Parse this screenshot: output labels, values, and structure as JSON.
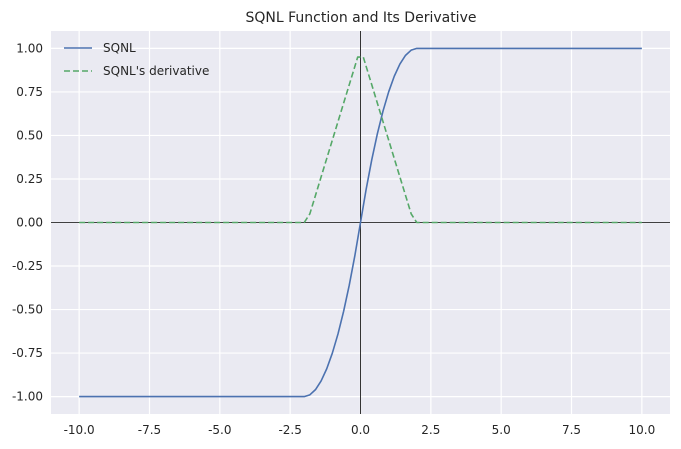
{
  "chart_data": {
    "type": "line",
    "title": "SQNL Function and Its Derivative",
    "xlabel": "",
    "ylabel": "",
    "xlim": [
      -11.0,
      11.0
    ],
    "ylim": [
      -1.1,
      1.1
    ],
    "x_ticks": [
      -10.0,
      -7.5,
      -5.0,
      -2.5,
      0.0,
      2.5,
      5.0,
      7.5,
      10.0
    ],
    "x_tick_labels": [
      "-10.0",
      "-7.5",
      "-5.0",
      "-2.5",
      "0.0",
      "2.5",
      "5.0",
      "7.5",
      "10.0"
    ],
    "y_ticks": [
      1.0,
      0.75,
      0.5,
      0.25,
      0.0,
      -0.25,
      -0.5,
      -0.75,
      -1.0
    ],
    "y_tick_labels": [
      "1.00",
      "0.75",
      "0.50",
      "0.25",
      "0.00",
      "-0.25",
      "-0.50",
      "-0.75",
      "-1.00"
    ],
    "grid": true,
    "axis_lines_at_zero": true,
    "legend": {
      "placement": "top-left"
    },
    "series": [
      {
        "name": "SQNL",
        "color": "#4c72b0",
        "style": "solid",
        "x": [
          -10.0,
          -2.0,
          -1.8,
          -1.6,
          -1.4,
          -1.2,
          -1.0,
          -0.8,
          -0.6,
          -0.4,
          -0.2,
          0.0,
          0.2,
          0.4,
          0.6,
          0.8,
          1.0,
          1.2,
          1.4,
          1.6,
          1.8,
          2.0,
          10.0
        ],
        "y": [
          -1.0,
          -1.0,
          -0.99,
          -0.96,
          -0.91,
          -0.84,
          -0.75,
          -0.64,
          -0.51,
          -0.36,
          -0.19,
          0.0,
          0.19,
          0.36,
          0.51,
          0.64,
          0.75,
          0.84,
          0.91,
          0.96,
          0.99,
          1.0,
          1.0
        ]
      },
      {
        "name": "SQNL's derivative",
        "color": "#55a868",
        "style": "dashed",
        "x": [
          -10.0,
          -2.0,
          -1.8,
          -0.1,
          0.1,
          1.8,
          2.0,
          10.0
        ],
        "y": [
          0.0,
          0.0,
          0.05,
          0.95,
          0.95,
          0.05,
          0.0,
          0.0
        ]
      }
    ]
  }
}
